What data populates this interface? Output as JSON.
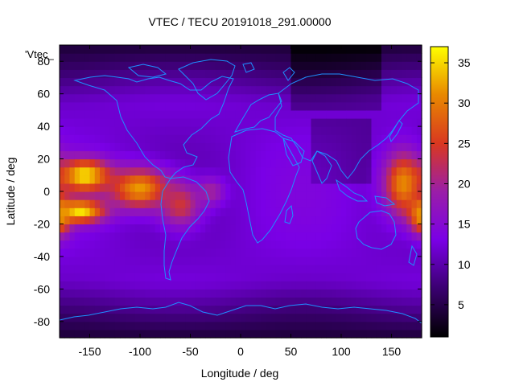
{
  "chart_data": {
    "type": "heatmap",
    "title": "VTEC / TECU 20191018_291.00000",
    "xlabel": "Longitude / deg",
    "ylabel": "Latitude / deg",
    "legend_label": "'Vtec_",
    "xlim": [
      -180,
      180
    ],
    "ylim": [
      -90,
      90
    ],
    "x_ticks": [
      -150,
      -100,
      -50,
      0,
      50,
      100,
      150
    ],
    "y_ticks": [
      -80,
      -60,
      -40,
      -20,
      0,
      20,
      40,
      60,
      80
    ],
    "colorbar": {
      "range": [
        1,
        37
      ],
      "ticks": [
        5,
        10,
        15,
        20,
        25,
        30,
        35
      ],
      "colormap": [
        "#000000",
        "#3a0070",
        "#7a00e6",
        "#9a1ea8",
        "#d93820",
        "#e88800",
        "#ffff00"
      ]
    },
    "grid": {
      "lon_step": 5,
      "lat_step": 5
    },
    "anomalies": [
      {
        "lon": -155,
        "lat": 10,
        "value": 36,
        "sx": 18,
        "sy": 7
      },
      {
        "lon": -160,
        "lat": -12,
        "value": 36,
        "sx": 18,
        "sy": 5
      },
      {
        "lon": -100,
        "lat": 2,
        "value": 32,
        "sx": 22,
        "sy": 9
      },
      {
        "lon": -60,
        "lat": -8,
        "value": 24,
        "sx": 15,
        "sy": 10
      },
      {
        "lon": -30,
        "lat": 0,
        "value": 20,
        "sx": 10,
        "sy": 6
      },
      {
        "lon": 162,
        "lat": 5,
        "value": 31,
        "sx": 14,
        "sy": 14
      },
      {
        "lon": 180,
        "lat": -15,
        "value": 32,
        "sx": 8,
        "sy": 8
      }
    ],
    "background_value": 12,
    "polar_value": 4
  }
}
